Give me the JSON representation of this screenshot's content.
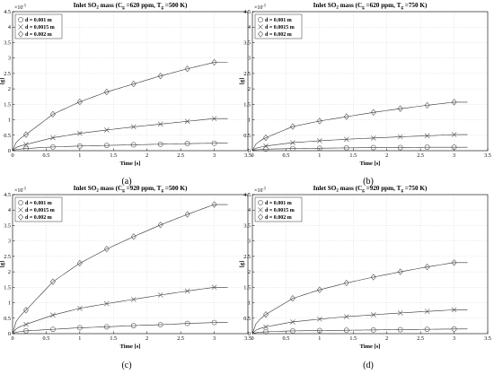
{
  "chart_data": [
    {
      "type": "line",
      "title_main": "Inlet SO",
      "title_sub": "2",
      "title_mid": " mass (C",
      "title_sub2": "g",
      "title_mid2": " =620 ppm, T",
      "title_sub3": "g",
      "title_end": " =500 K)",
      "xlabel": "Time [s]",
      "ylabel": "[g]",
      "y_exponent_base": "×10",
      "y_exponent_power": "-5",
      "xlim": [
        0,
        3.5
      ],
      "ylim": [
        0,
        4.5
      ],
      "xticks": [
        0,
        0.5,
        1,
        1.5,
        2,
        2.5,
        3,
        3.5
      ],
      "yticks": [
        0,
        0.5,
        1,
        1.5,
        2,
        2.5,
        3,
        3.5,
        4,
        4.5
      ],
      "grid": true,
      "legend_position": "top-left",
      "caption": "(a)",
      "series": [
        {
          "name": "d = 0.001 m",
          "marker": "circle",
          "x": [
            0.2,
            0.6,
            1.0,
            1.4,
            1.8,
            2.2,
            2.6,
            3.0
          ],
          "values": [
            0.07,
            0.12,
            0.15,
            0.17,
            0.19,
            0.21,
            0.23,
            0.24
          ]
        },
        {
          "name": "d = 0.0015 m",
          "marker": "x",
          "x": [
            0.2,
            0.6,
            1.0,
            1.4,
            1.8,
            2.2,
            2.6,
            3.0
          ],
          "values": [
            0.2,
            0.42,
            0.56,
            0.67,
            0.77,
            0.86,
            0.95,
            1.04
          ]
        },
        {
          "name": "d = 0.002 m",
          "marker": "diamond",
          "x": [
            0.2,
            0.6,
            1.0,
            1.4,
            1.8,
            2.2,
            2.6,
            3.0
          ],
          "values": [
            0.52,
            1.18,
            1.58,
            1.9,
            2.16,
            2.42,
            2.65,
            2.86
          ]
        }
      ]
    },
    {
      "type": "line",
      "title_main": "Inlet SO",
      "title_sub": "2",
      "title_mid": " mass (C",
      "title_sub2": "g",
      "title_mid2": " =620 ppm, T",
      "title_sub3": "g",
      "title_end": " =750 K)",
      "xlabel": "Time [s]",
      "ylabel": "[g]",
      "y_exponent_base": "×10",
      "y_exponent_power": "-5",
      "xlim": [
        0,
        3.5
      ],
      "ylim": [
        0,
        4.5
      ],
      "xticks": [
        0,
        0.5,
        1,
        1.5,
        2,
        2.5,
        3,
        3.5
      ],
      "yticks": [
        0,
        0.5,
        1,
        1.5,
        2,
        2.5,
        3,
        3.5,
        4,
        4.5
      ],
      "grid": true,
      "legend_position": "top-left",
      "caption": "(b)",
      "series": [
        {
          "name": "d = 0.001 m",
          "marker": "circle",
          "x": [
            0.2,
            0.6,
            1.0,
            1.4,
            1.8,
            2.2,
            2.6,
            3.0
          ],
          "values": [
            0.05,
            0.07,
            0.08,
            0.09,
            0.1,
            0.1,
            0.11,
            0.11
          ]
        },
        {
          "name": "d = 0.0015 m",
          "marker": "x",
          "x": [
            0.2,
            0.6,
            1.0,
            1.4,
            1.8,
            2.2,
            2.6,
            3.0
          ],
          "values": [
            0.15,
            0.26,
            0.32,
            0.37,
            0.41,
            0.45,
            0.48,
            0.52
          ]
        },
        {
          "name": "d = 0.002 m",
          "marker": "diamond",
          "x": [
            0.2,
            0.6,
            1.0,
            1.4,
            1.8,
            2.2,
            2.6,
            3.0
          ],
          "values": [
            0.42,
            0.78,
            0.96,
            1.1,
            1.24,
            1.36,
            1.47,
            1.57
          ]
        }
      ]
    },
    {
      "type": "line",
      "title_main": "Inlet SO",
      "title_sub": "2",
      "title_mid": " mass (C",
      "title_sub2": "g",
      "title_mid2": " =920 ppm, T",
      "title_sub3": "g",
      "title_end": " =500 K)",
      "xlabel": "Time [s]",
      "ylabel": "[g]",
      "y_exponent_base": "×10",
      "y_exponent_power": "-5",
      "xlim": [
        0,
        3.5
      ],
      "ylim": [
        0,
        4.5
      ],
      "xticks": [
        0,
        0.5,
        1,
        1.5,
        2,
        2.5,
        3,
        3.5
      ],
      "yticks": [
        0,
        0.5,
        1,
        1.5,
        2,
        2.5,
        3,
        3.5,
        4,
        4.5
      ],
      "grid": true,
      "legend_position": "top-left",
      "caption": "(c)",
      "series": [
        {
          "name": "d = 0.001 m",
          "marker": "circle",
          "x": [
            0.2,
            0.6,
            1.0,
            1.4,
            1.8,
            2.2,
            2.6,
            3.0
          ],
          "values": [
            0.09,
            0.14,
            0.19,
            0.22,
            0.26,
            0.29,
            0.33,
            0.36
          ]
        },
        {
          "name": "d = 0.0015 m",
          "marker": "x",
          "x": [
            0.2,
            0.6,
            1.0,
            1.4,
            1.8,
            2.2,
            2.6,
            3.0
          ],
          "values": [
            0.3,
            0.6,
            0.82,
            0.97,
            1.11,
            1.25,
            1.38,
            1.5
          ]
        },
        {
          "name": "d = 0.002 m",
          "marker": "diamond",
          "x": [
            0.2,
            0.6,
            1.0,
            1.4,
            1.8,
            2.2,
            2.6,
            3.0
          ],
          "values": [
            0.76,
            1.68,
            2.28,
            2.74,
            3.14,
            3.52,
            3.86,
            4.18
          ]
        }
      ]
    },
    {
      "type": "line",
      "title_main": "Inlet SO",
      "title_sub": "2",
      "title_mid": " mass (C",
      "title_sub2": "g",
      "title_mid2": " =920 ppm, T",
      "title_sub3": "g",
      "title_end": " =750 K)",
      "xlabel": "Time [s]",
      "ylabel": "[g]",
      "y_exponent_base": "×10",
      "y_exponent_power": "-5",
      "xlim": [
        0,
        3.5
      ],
      "ylim": [
        0,
        4.5
      ],
      "xticks": [
        0,
        0.5,
        1,
        1.5,
        2,
        2.5,
        3,
        3.5
      ],
      "yticks": [
        0,
        0.5,
        1,
        1.5,
        2,
        2.5,
        3,
        3.5,
        4,
        4.5
      ],
      "grid": true,
      "legend_position": "top-left",
      "caption": "(d)",
      "series": [
        {
          "name": "d = 0.001 m",
          "marker": "circle",
          "x": [
            0.2,
            0.6,
            1.0,
            1.4,
            1.8,
            2.2,
            2.6,
            3.0
          ],
          "values": [
            0.06,
            0.09,
            0.1,
            0.11,
            0.12,
            0.13,
            0.14,
            0.15
          ]
        },
        {
          "name": "d = 0.0015 m",
          "marker": "x",
          "x": [
            0.2,
            0.6,
            1.0,
            1.4,
            1.8,
            2.2,
            2.6,
            3.0
          ],
          "values": [
            0.22,
            0.38,
            0.47,
            0.55,
            0.61,
            0.67,
            0.72,
            0.77
          ]
        },
        {
          "name": "d = 0.002 m",
          "marker": "diamond",
          "x": [
            0.2,
            0.6,
            1.0,
            1.4,
            1.8,
            2.2,
            2.6,
            3.0
          ],
          "values": [
            0.62,
            1.14,
            1.42,
            1.64,
            1.83,
            2.0,
            2.16,
            2.3
          ]
        }
      ]
    }
  ]
}
